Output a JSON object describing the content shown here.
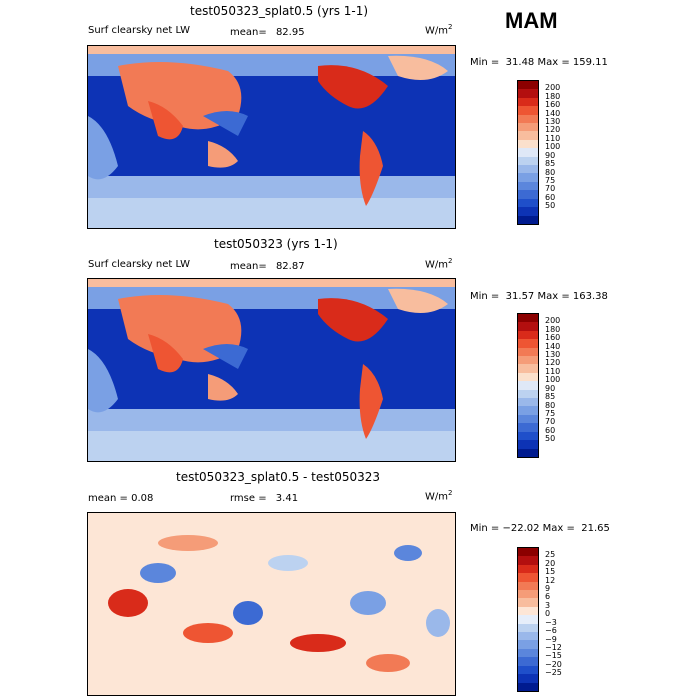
{
  "season": "MAM",
  "panels": [
    {
      "title": "test050323_splat0.5 (yrs 1-1)",
      "left_label": "Surf clearsky net LW",
      "stat_label": "mean=",
      "stat_value": "82.95",
      "units": "W/m",
      "units_exp": "2",
      "minmax": "Min =  31.48 Max = 159.11",
      "levels": [
        "200",
        "180",
        "160",
        "140",
        "130",
        "120",
        "110",
        "100",
        "90",
        "85",
        "80",
        "75",
        "70",
        "60",
        "50"
      ],
      "colors": [
        "#8b0000",
        "#b30f0f",
        "#d92b1a",
        "#ee5533",
        "#f27a55",
        "#f59c78",
        "#f8bd9e",
        "#fbe0cc",
        "#dfe8f7",
        "#bcd2f0",
        "#9ab8ea",
        "#7aa0e4",
        "#5b86dc",
        "#3c6ad3",
        "#1f4fca",
        "#0d33b5",
        "#001b8f"
      ]
    },
    {
      "title": "test050323 (yrs 1-1)",
      "left_label": "Surf clearsky net LW",
      "stat_label": "mean=",
      "stat_value": "82.87",
      "units": "W/m",
      "units_exp": "2",
      "minmax": "Min =  31.57 Max = 163.38",
      "levels": [
        "200",
        "180",
        "160",
        "140",
        "130",
        "120",
        "110",
        "100",
        "90",
        "85",
        "80",
        "75",
        "70",
        "60",
        "50"
      ],
      "colors": [
        "#8b0000",
        "#b30f0f",
        "#d92b1a",
        "#ee5533",
        "#f27a55",
        "#f59c78",
        "#f8bd9e",
        "#fbe0cc",
        "#dfe8f7",
        "#bcd2f0",
        "#9ab8ea",
        "#7aa0e4",
        "#5b86dc",
        "#3c6ad3",
        "#1f4fca",
        "#0d33b5",
        "#001b8f"
      ]
    },
    {
      "title": "test050323_splat0.5 - test050323",
      "left_label": "mean =    0.08",
      "stat_label": "rmse =",
      "stat_value": "3.41",
      "units": "W/m",
      "units_exp": "2",
      "minmax": "Min = −22.02 Max =  21.65",
      "levels": [
        "25",
        "20",
        "15",
        "12",
        "9",
        "6",
        "3",
        "0",
        "−3",
        "−6",
        "−9",
        "−12",
        "−15",
        "−20",
        "−25"
      ],
      "colors": [
        "#8b0000",
        "#b30f0f",
        "#d92b1a",
        "#ee5533",
        "#f27a55",
        "#f59c78",
        "#f8bd9e",
        "#fde6d6",
        "#e6eefa",
        "#bcd2f0",
        "#9ab8ea",
        "#7aa0e4",
        "#5b86dc",
        "#3c6ad3",
        "#1f4fca",
        "#0d33b5",
        "#001b8f"
      ]
    }
  ]
}
